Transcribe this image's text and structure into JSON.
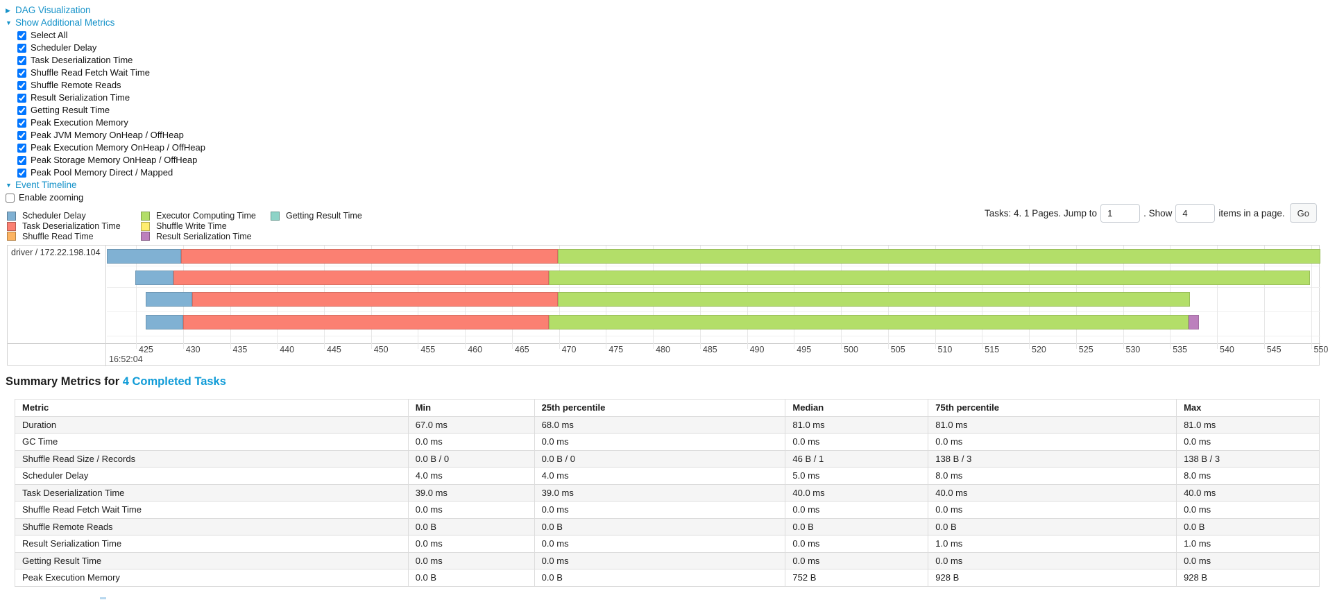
{
  "colors": {
    "link": "#1592c9",
    "title_link": "#0f9bd7",
    "scheduler_delay": "#80B1D3",
    "task_deserialization": "#FB8072",
    "shuffle_read": "#FDB462",
    "executor_computing": "#B3DE69",
    "shuffle_write": "#FFED6F",
    "result_serialization": "#BC80BD",
    "getting_result": "#8DD3C7"
  },
  "toggles": {
    "dag_label": "DAG Visualization",
    "metrics_label": "Show Additional Metrics",
    "timeline_label": "Event Timeline"
  },
  "metric_checkboxes": [
    {
      "label": "Select All",
      "checked": true
    },
    {
      "label": "Scheduler Delay",
      "checked": true
    },
    {
      "label": "Task Deserialization Time",
      "checked": true
    },
    {
      "label": "Shuffle Read Fetch Wait Time",
      "checked": true
    },
    {
      "label": "Shuffle Remote Reads",
      "checked": true
    },
    {
      "label": "Result Serialization Time",
      "checked": true
    },
    {
      "label": "Getting Result Time",
      "checked": true
    },
    {
      "label": "Peak Execution Memory",
      "checked": true
    },
    {
      "label": "Peak JVM Memory OnHeap / OffHeap",
      "checked": true
    },
    {
      "label": "Peak Execution Memory OnHeap / OffHeap",
      "checked": true
    },
    {
      "label": "Peak Storage Memory OnHeap / OffHeap",
      "checked": true
    },
    {
      "label": "Peak Pool Memory Direct / Mapped",
      "checked": true
    }
  ],
  "enable_zooming": {
    "label": "Enable zooming",
    "checked": false
  },
  "legend": {
    "columns": [
      [
        {
          "label": "Scheduler Delay",
          "kind": "scheduler_delay"
        },
        {
          "label": "Task Deserialization Time",
          "kind": "task_deserialization"
        },
        {
          "label": "Shuffle Read Time",
          "kind": "shuffle_read"
        }
      ],
      [
        {
          "label": "Executor Computing Time",
          "kind": "executor_computing"
        },
        {
          "label": "Shuffle Write Time",
          "kind": "shuffle_write"
        },
        {
          "label": "Result Serialization Time",
          "kind": "result_serialization"
        }
      ],
      [
        {
          "label": "Getting Result Time",
          "kind": "getting_result"
        }
      ]
    ]
  },
  "pagination": {
    "tasks_text": "Tasks: 4. 1 Pages. Jump to",
    "jump_value": "1",
    "show_text": ". Show",
    "show_value": "4",
    "items_text": "items in a page.",
    "go_label": "Go"
  },
  "chart_data": {
    "type": "timeline",
    "group_label": "driver / 172.22.198.104",
    "axis": {
      "unit": "ms within second 16:52:04",
      "min": 421.9,
      "max": 551.0,
      "tick_step": 5,
      "ticks": [
        425,
        430,
        435,
        440,
        445,
        450,
        455,
        460,
        465,
        470,
        475,
        480,
        485,
        490,
        495,
        500,
        505,
        510,
        515,
        520,
        525,
        530,
        535,
        540,
        545,
        550
      ],
      "major_label": "16:52:04"
    },
    "tasks": [
      {
        "segments": [
          {
            "kind": "scheduler_delay",
            "start": 421.9,
            "end": 429.8
          },
          {
            "kind": "task_deserialization",
            "start": 429.8,
            "end": 469.9
          },
          {
            "kind": "executor_computing",
            "start": 469.9,
            "end": 551.0
          }
        ]
      },
      {
        "segments": [
          {
            "kind": "scheduler_delay",
            "start": 424.9,
            "end": 429.0
          },
          {
            "kind": "task_deserialization",
            "start": 429.0,
            "end": 468.9
          },
          {
            "kind": "executor_computing",
            "start": 468.9,
            "end": 549.9
          }
        ]
      },
      {
        "segments": [
          {
            "kind": "scheduler_delay",
            "start": 426.0,
            "end": 431.0
          },
          {
            "kind": "task_deserialization",
            "start": 431.0,
            "end": 469.9
          },
          {
            "kind": "executor_computing",
            "start": 469.9,
            "end": 537.1
          }
        ]
      },
      {
        "segments": [
          {
            "kind": "scheduler_delay",
            "start": 426.0,
            "end": 430.0
          },
          {
            "kind": "task_deserialization",
            "start": 430.0,
            "end": 468.9
          },
          {
            "kind": "executor_computing",
            "start": 468.9,
            "end": 537.0
          },
          {
            "kind": "result_serialization",
            "start": 537.0,
            "end": 538.1
          }
        ]
      }
    ]
  },
  "summary": {
    "title_prefix": "Summary Metrics for",
    "title_link": "4 Completed Tasks",
    "table": {
      "headers": [
        "Metric",
        "Min",
        "25th percentile",
        "Median",
        "75th percentile",
        "Max"
      ],
      "rows": [
        [
          "Duration",
          "67.0 ms",
          "68.0 ms",
          "81.0 ms",
          "81.0 ms",
          "81.0 ms"
        ],
        [
          "GC Time",
          "0.0 ms",
          "0.0 ms",
          "0.0 ms",
          "0.0 ms",
          "0.0 ms"
        ],
        [
          "Shuffle Read Size / Records",
          "0.0 B / 0",
          "0.0 B / 0",
          "46 B / 1",
          "138 B / 3",
          "138 B / 3"
        ],
        [
          "Scheduler Delay",
          "4.0 ms",
          "4.0 ms",
          "5.0 ms",
          "8.0 ms",
          "8.0 ms"
        ],
        [
          "Task Deserialization Time",
          "39.0 ms",
          "39.0 ms",
          "40.0 ms",
          "40.0 ms",
          "40.0 ms"
        ],
        [
          "Shuffle Read Fetch Wait Time",
          "0.0 ms",
          "0.0 ms",
          "0.0 ms",
          "0.0 ms",
          "0.0 ms"
        ],
        [
          "Shuffle Remote Reads",
          "0.0 B",
          "0.0 B",
          "0.0 B",
          "0.0 B",
          "0.0 B"
        ],
        [
          "Result Serialization Time",
          "0.0 ms",
          "0.0 ms",
          "0.0 ms",
          "1.0 ms",
          "1.0 ms"
        ],
        [
          "Getting Result Time",
          "0.0 ms",
          "0.0 ms",
          "0.0 ms",
          "0.0 ms",
          "0.0 ms"
        ],
        [
          "Peak Execution Memory",
          "0.0 B",
          "0.0 B",
          "752 B",
          "928 B",
          "928 B"
        ]
      ]
    }
  }
}
